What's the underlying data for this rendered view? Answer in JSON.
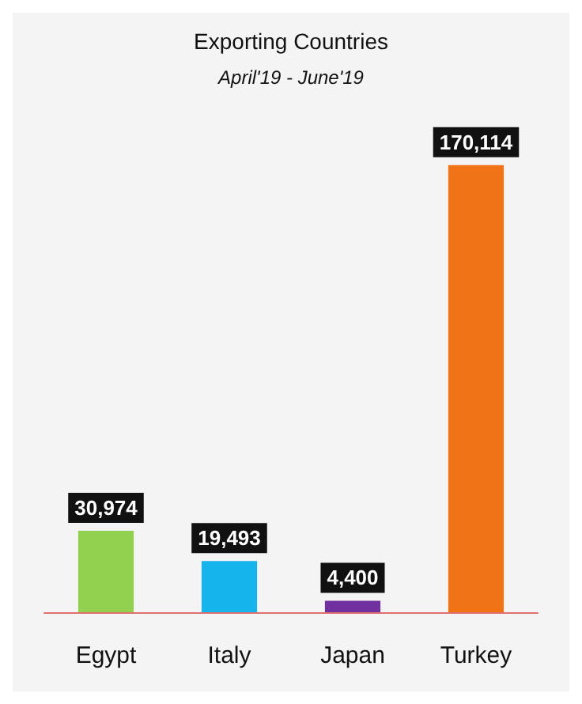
{
  "chart_data": {
    "type": "bar",
    "title": "Exporting Countries",
    "subtitle": "April'19 - June'19",
    "categories": [
      "Egypt",
      "Italy",
      "Japan",
      "Turkey"
    ],
    "values": [
      30974,
      19493,
      4400,
      170114
    ],
    "colors": [
      "#92d050",
      "#16b4ec",
      "#7030a0",
      "#f07316"
    ],
    "value_labels": [
      "30,974",
      "19,493",
      "4,400",
      "170,114"
    ],
    "tick_labels": "x",
    "grid": false
  }
}
